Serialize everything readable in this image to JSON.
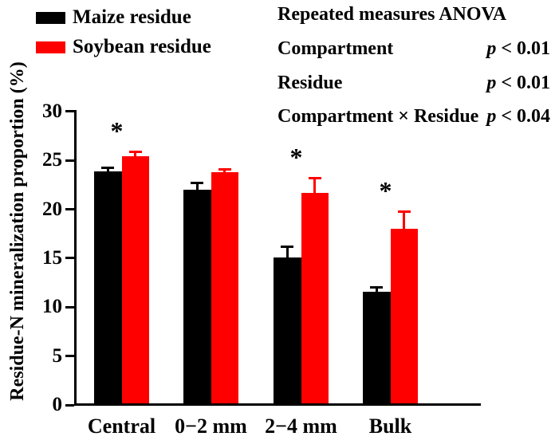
{
  "legend": {
    "items": [
      {
        "label": "Maize residue",
        "color": "#000000"
      },
      {
        "label": "Soybean residue",
        "color": "#ff0000"
      }
    ]
  },
  "anova": {
    "title": "Repeated measures ANOVA",
    "p_symbol": "p",
    "rows": [
      {
        "label": "Compartment",
        "p_value": " < 0.01"
      },
      {
        "label": "Residue",
        "p_value": " < 0.01"
      },
      {
        "label": "Compartment × Residue",
        "p_value": " < 0.04"
      }
    ]
  },
  "chart_data": {
    "type": "bar",
    "categories": [
      "Central",
      "0−2 mm",
      "2−4 mm",
      "Bulk"
    ],
    "series": [
      {
        "name": "Maize residue",
        "color": "#000000",
        "values": [
          23.9,
          22.0,
          15.1,
          11.6
        ],
        "errors": [
          0.4,
          0.7,
          1.1,
          0.5
        ]
      },
      {
        "name": "Soybean residue",
        "color": "#ff0000",
        "values": [
          25.4,
          23.8,
          21.7,
          18.0
        ],
        "errors": [
          0.5,
          0.3,
          1.5,
          1.8
        ]
      }
    ],
    "significance": {
      "symbol": "*",
      "groups": [
        true,
        false,
        true,
        true
      ]
    },
    "title": "",
    "xlabel": "",
    "ylabel": "Residue-N mineralization proportion (%)",
    "ylim": [
      0,
      30
    ],
    "yticks": [
      0,
      5,
      10,
      15,
      20,
      25,
      30
    ],
    "grid": false,
    "error_bars": "upper",
    "legend_position": "top-left"
  }
}
